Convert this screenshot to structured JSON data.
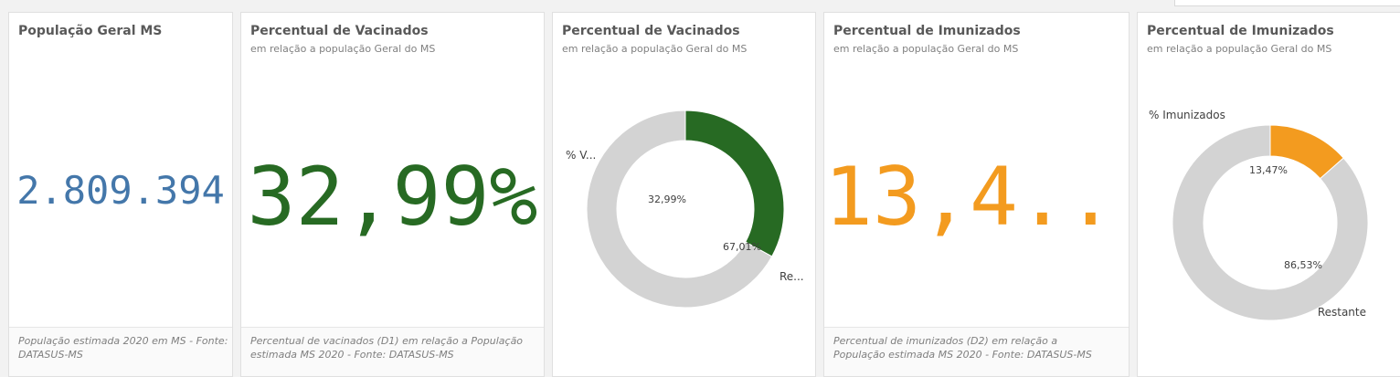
{
  "cards": [
    {
      "title": "População Geral MS",
      "kpi": "2.809.394",
      "kpi_color": "#4477aa",
      "footnote": "População estimada 2020 em MS - Fonte: DATASUS-MS"
    },
    {
      "title": "Percentual de Vacinados",
      "subtitle": "em relação a população Geral do MS",
      "kpi": "32,99%",
      "kpi_color": "#276a23",
      "footnote": "Percentual de vacinados (D1) em relação a População estimada MS 2020 - Fonte: DATASUS-MS"
    },
    {
      "title": "Percentual de Vacinados",
      "subtitle": "em relação a população Geral do MS"
    },
    {
      "title": "Percentual de Imunizados",
      "subtitle": "em relação a população Geral do MS",
      "kpi": "13,4...",
      "kpi_color": "#f39b1f",
      "footnote": "Percentual de imunizados (D2) em relação a População estimada MS 2020 - Fonte: DATASUS-MS"
    },
    {
      "title": "Percentual de Imunizados",
      "subtitle": "em relação a população Geral do MS"
    }
  ],
  "chart_data": [
    {
      "type": "pie",
      "categories": [
        "% V...",
        "Re..."
      ],
      "values": [
        32.99,
        67.01
      ],
      "value_labels": [
        "32,99%",
        "67,01%"
      ],
      "colors": [
        "#276a23",
        "#d3d3d3"
      ]
    },
    {
      "type": "pie",
      "categories": [
        "% Imunizados",
        "Restante"
      ],
      "values": [
        13.47,
        86.53
      ],
      "value_labels": [
        "13,47%",
        "86,53%"
      ],
      "colors": [
        "#f39b1f",
        "#d3d3d3"
      ]
    }
  ]
}
